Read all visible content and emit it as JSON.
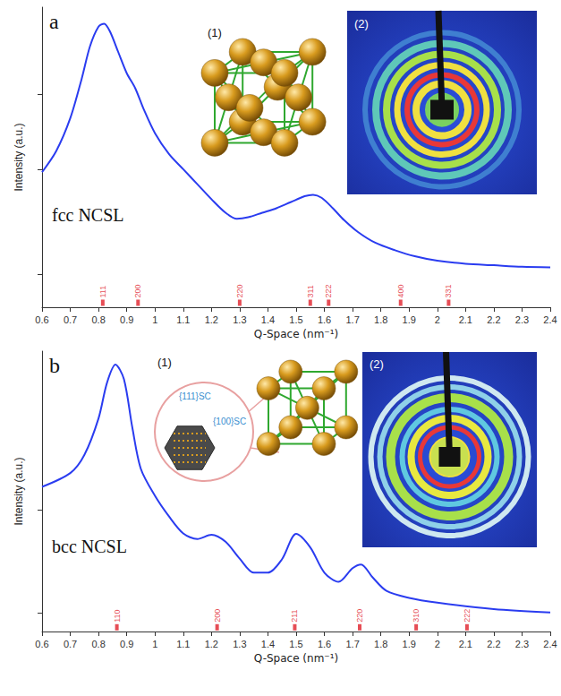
{
  "chart_data": [
    {
      "type": "line",
      "panel": "a",
      "annotation": "fcc NCSL",
      "x_label": "Q-Space (nm⁻¹)",
      "y_label": "Intensity (a.u.)",
      "color": "#2a3cf0",
      "x": [
        0.6,
        0.65,
        0.7,
        0.74,
        0.77,
        0.8,
        0.82,
        0.84,
        0.87,
        0.9,
        0.93,
        0.96,
        1.0,
        1.05,
        1.1,
        1.15,
        1.2,
        1.25,
        1.29,
        1.33,
        1.38,
        1.43,
        1.48,
        1.53,
        1.56,
        1.59,
        1.63,
        1.67,
        1.72,
        1.78,
        1.85,
        1.92,
        2.0,
        2.1,
        2.2,
        2.3,
        2.4
      ],
      "values": [
        45,
        52,
        63,
        76,
        87,
        93.5,
        94.5,
        92,
        85,
        78,
        73,
        66,
        58,
        51,
        46,
        41,
        36,
        31.5,
        29.5,
        30,
        31.5,
        33,
        35,
        37,
        37.5,
        36.5,
        33,
        29,
        25,
        21.5,
        19,
        17,
        15.5,
        14.5,
        14,
        13.5,
        13.3
      ],
      "xlim": [
        0.6,
        2.4
      ],
      "xticks": [
        0.6,
        0.7,
        0.8,
        0.9,
        1.0,
        1.1,
        1.2,
        1.3,
        1.4,
        1.5,
        1.6,
        1.7,
        1.8,
        1.9,
        2.0,
        2.1,
        2.2,
        2.3,
        2.4
      ],
      "ylim": [
        0,
        100
      ],
      "yticks": [
        11,
        46,
        71
      ],
      "tick_labels": "x",
      "grid": false,
      "reflections": {
        "labels": [
          "111",
          "200",
          "220",
          "311",
          "222",
          "400",
          "331"
        ],
        "x": [
          0.815,
          0.94,
          1.3,
          1.55,
          1.615,
          1.87,
          2.04
        ],
        "color": "#e0202a"
      },
      "annotations": [
        "(1)",
        "(2)"
      ]
    },
    {
      "type": "line",
      "panel": "b",
      "annotation": "bcc NCSL",
      "x_label": "Q-Space (nm⁻¹)",
      "y_label": "Intensity (a.u.)",
      "color": "#2a3cf0",
      "x": [
        0.6,
        0.7,
        0.75,
        0.8,
        0.83,
        0.86,
        0.89,
        0.92,
        0.95,
        1.0,
        1.05,
        1.1,
        1.15,
        1.2,
        1.25,
        1.3,
        1.35,
        1.4,
        1.45,
        1.5,
        1.55,
        1.6,
        1.65,
        1.7,
        1.73,
        1.77,
        1.82,
        1.9,
        2.0,
        2.2,
        2.4
      ],
      "values": [
        51.6,
        56.5,
        63,
        76,
        88.7,
        95.2,
        90,
        72.6,
        58,
        48.4,
        41,
        35,
        33,
        34.5,
        32,
        26,
        21,
        21,
        25.8,
        34.8,
        30,
        21,
        17.7,
        22.6,
        23.9,
        19.4,
        14.5,
        12,
        10.3,
        8,
        6.8
      ],
      "xlim": [
        0.6,
        2.4
      ],
      "xticks": [
        0.6,
        0.7,
        0.8,
        0.9,
        1.0,
        1.1,
        1.2,
        1.3,
        1.4,
        1.5,
        1.6,
        1.7,
        1.8,
        1.9,
        2.0,
        2.1,
        2.2,
        2.3,
        2.4
      ],
      "ylim": [
        0,
        100
      ],
      "yticks": [
        6.5,
        43.5
      ],
      "tick_labels": "x",
      "grid": false,
      "reflections": {
        "labels": [
          "110",
          "200",
          "211",
          "220",
          "310",
          "222"
        ],
        "x": [
          0.865,
          1.22,
          1.495,
          1.725,
          1.925,
          2.105
        ],
        "color": "#e0202a"
      },
      "annotations": [
        "(1)",
        "(2)",
        "{111}SC",
        "{100}SC"
      ]
    }
  ]
}
